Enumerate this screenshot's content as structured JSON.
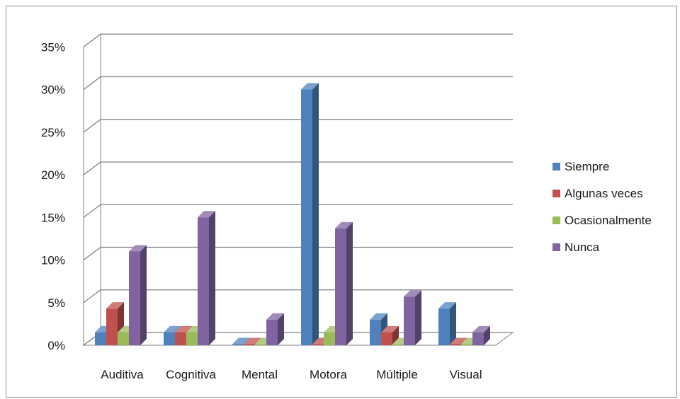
{
  "chart_data": {
    "type": "bar",
    "variant": "3d-clustered-column",
    "title": "",
    "xlabel": "",
    "ylabel": "",
    "categories": [
      "Auditiva",
      "Cognitiva",
      "Mental",
      "Motora",
      "Múltiple",
      "Visual"
    ],
    "series": [
      {
        "name": "Siempre",
        "color": "#4f81bd",
        "values": [
          1.5,
          1.5,
          0,
          30,
          3,
          4.3
        ]
      },
      {
        "name": "Algunas veces",
        "color": "#c0504d",
        "values": [
          4.3,
          1.5,
          0,
          0,
          1.5,
          0
        ]
      },
      {
        "name": "Ocasionalmente",
        "color": "#9bbb59",
        "values": [
          1.5,
          1.5,
          0,
          1.5,
          0,
          0
        ]
      },
      {
        "name": "Nunca",
        "color": "#8064a2",
        "values": [
          11,
          15,
          3,
          13.7,
          5.7,
          1.5
        ]
      }
    ],
    "yticks": [
      "0%",
      "5%",
      "10%",
      "15%",
      "20%",
      "25%",
      "30%",
      "35%"
    ],
    "ylim": [
      0,
      35
    ],
    "grid": true,
    "legend_position": "right"
  }
}
